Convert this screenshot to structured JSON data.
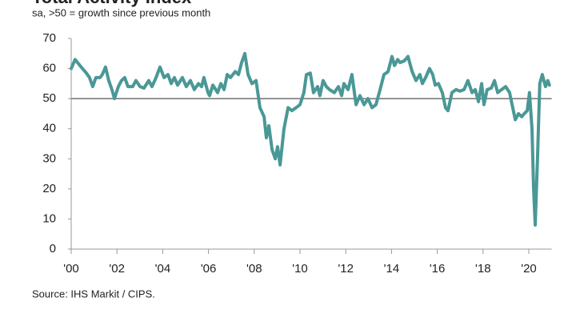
{
  "chart_data": {
    "type": "line",
    "title": "Total Activity Index",
    "subtitle": "sa, >50 = growth since previous month",
    "source": "Source: IHS Markit / CIPS.",
    "color": "#4a9896",
    "reference_line": 50,
    "xlim": [
      2000,
      2021
    ],
    "ylim": [
      0,
      70
    ],
    "yticks": [
      0,
      10,
      20,
      30,
      40,
      50,
      60,
      70
    ],
    "xticks": [
      {
        "value": 2000,
        "label": "'00"
      },
      {
        "value": 2002,
        "label": "'02"
      },
      {
        "value": 2004,
        "label": "'04"
      },
      {
        "value": 2006,
        "label": "'06"
      },
      {
        "value": 2008,
        "label": "'08"
      },
      {
        "value": 2010,
        "label": "'10"
      },
      {
        "value": 2012,
        "label": "'12"
      },
      {
        "value": 2014,
        "label": "'14"
      },
      {
        "value": 2016,
        "label": "'16"
      },
      {
        "value": 2018,
        "label": "'18"
      },
      {
        "value": 2020,
        "label": "'20"
      }
    ],
    "x": [
      2000.0,
      2000.17,
      2000.38,
      2000.66,
      2000.8,
      2000.94,
      2001.08,
      2001.26,
      2001.36,
      2001.5,
      2001.64,
      2001.78,
      2001.89,
      2002.06,
      2002.2,
      2002.34,
      2002.48,
      2002.69,
      2002.83,
      2003.01,
      2003.18,
      2003.39,
      2003.53,
      2003.71,
      2003.88,
      2004.06,
      2004.23,
      2004.37,
      2004.51,
      2004.65,
      2004.86,
      2005.03,
      2005.21,
      2005.38,
      2005.56,
      2005.7,
      2005.8,
      2005.98,
      2006.05,
      2006.19,
      2006.4,
      2006.54,
      2006.68,
      2006.82,
      2006.96,
      2007.17,
      2007.31,
      2007.45,
      2007.59,
      2007.73,
      2007.9,
      2008.08,
      2008.25,
      2008.43,
      2008.53,
      2008.64,
      2008.78,
      2008.92,
      2009.02,
      2009.13,
      2009.3,
      2009.48,
      2009.65,
      2009.83,
      2010.0,
      2010.17,
      2010.28,
      2010.45,
      2010.59,
      2010.77,
      2010.87,
      2011.01,
      2011.15,
      2011.29,
      2011.5,
      2011.68,
      2011.82,
      2011.92,
      2012.1,
      2012.27,
      2012.45,
      2012.62,
      2012.8,
      2012.97,
      2013.15,
      2013.32,
      2013.5,
      2013.67,
      2013.85,
      2014.02,
      2014.13,
      2014.27,
      2014.37,
      2014.55,
      2014.72,
      2014.9,
      2015.07,
      2015.24,
      2015.35,
      2015.49,
      2015.66,
      2015.8,
      2015.91,
      2016.05,
      2016.22,
      2016.36,
      2016.47,
      2016.64,
      2016.82,
      2016.99,
      2017.17,
      2017.34,
      2017.52,
      2017.66,
      2017.8,
      2017.94,
      2018.04,
      2018.18,
      2018.36,
      2018.5,
      2018.64,
      2018.81,
      2018.99,
      2019.16,
      2019.27,
      2019.41,
      2019.55,
      2019.69,
      2019.8,
      2019.93,
      2020.03,
      2020.14,
      2020.21,
      2020.28,
      2020.38,
      2020.48,
      2020.59,
      2020.73,
      2020.83,
      2020.9
    ],
    "values": [
      60,
      63,
      61,
      58.5,
      57,
      54,
      57,
      57,
      58,
      60.5,
      56,
      53,
      50,
      54,
      56,
      57,
      54,
      54,
      56,
      54,
      53.5,
      56,
      54,
      57,
      60.5,
      57,
      58,
      55,
      57,
      54.5,
      57,
      54,
      56,
      53,
      55,
      54,
      57,
      52,
      51,
      54.5,
      52,
      55,
      53,
      58,
      57,
      59,
      58,
      62,
      65,
      58,
      55,
      56,
      47,
      44,
      37,
      41,
      33,
      30,
      34,
      28,
      40,
      47,
      46,
      47,
      48,
      52,
      58,
      58.5,
      52,
      54,
      51,
      56,
      54,
      53,
      52,
      54,
      51,
      55,
      53,
      58,
      48,
      51,
      48,
      50,
      47,
      48,
      53,
      58,
      59,
      64,
      61,
      63,
      62,
      62.5,
      64,
      59,
      56,
      58,
      55,
      57,
      60,
      58,
      54.5,
      55,
      52,
      47,
      46,
      52,
      53,
      52.5,
      53,
      56,
      52,
      53,
      49,
      55,
      48,
      53,
      53.5,
      56,
      52,
      53,
      54,
      52,
      48,
      43,
      45,
      44,
      45,
      46,
      52,
      40,
      20,
      8,
      30,
      55,
      58,
      54,
      56,
      54.5
    ]
  }
}
